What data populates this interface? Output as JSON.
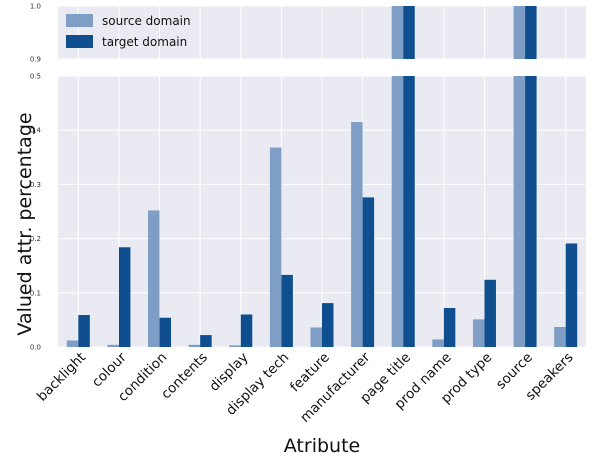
{
  "chart_data": {
    "type": "bar",
    "title": "",
    "xlabel": "Atribute",
    "ylabel": "Valued attr. percentage",
    "categories": [
      "backlight",
      "colour",
      "condition",
      "contents",
      "display",
      "display tech",
      "feature",
      "manufacturer",
      "page title",
      "prod name",
      "prod type",
      "source",
      "speakers"
    ],
    "series": [
      {
        "name": "source domain",
        "color": "#7e9ec6",
        "values": [
          0.012,
          0.004,
          0.252,
          0.004,
          0.003,
          0.368,
          0.036,
          0.415,
          1.0,
          0.014,
          0.051,
          1.0,
          0.037
        ]
      },
      {
        "name": "target domain",
        "color": "#0f4f8f",
        "values": [
          0.059,
          0.184,
          0.054,
          0.022,
          0.06,
          0.133,
          0.081,
          0.276,
          1.0,
          0.072,
          0.124,
          1.0,
          0.191
        ]
      }
    ],
    "ylim_lower": [
      0,
      0.5
    ],
    "ylim_upper": [
      0.9,
      1.0
    ],
    "yticks_lower": [
      "0.0",
      "0.1",
      "0.2",
      "0.3",
      "0.4",
      "0.5"
    ],
    "yticks_upper": [
      "0.9",
      "1.0"
    ],
    "legend_position": "top-left",
    "grid": true,
    "broken_axis": true
  }
}
